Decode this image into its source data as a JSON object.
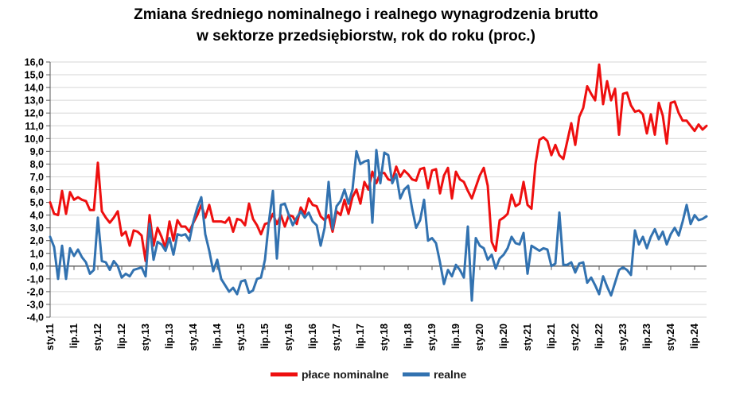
{
  "title": {
    "line1": "Zmiana średniego nominalnego i realnego wynagrodzenia brutto",
    "line2": "w sektorze przedsiębiorstw, rok do roku (proc.)"
  },
  "chart_data": {
    "type": "line",
    "title": "Zmiana średniego nominalnego i realnego wynagrodzenia brutto w sektorze przedsiębiorstw, rok do roku (proc.)",
    "grid": "horizontal",
    "legend_position": "bottom",
    "ylim": [
      -4.0,
      16.0
    ],
    "y_tick_step": 1.0,
    "y_ticks": [
      "16,0",
      "15,0",
      "14,0",
      "13,0",
      "12,0",
      "11,0",
      "10,0",
      "9,0",
      "8,0",
      "7,0",
      "6,0",
      "5,0",
      "4,0",
      "3,0",
      "2,0",
      "1,0",
      "0,0",
      "-1,0",
      "-2,0",
      "-3,0",
      "-4,0"
    ],
    "x_labels": [
      "sty.11",
      "lip.11",
      "sty.12",
      "lip.12",
      "sty.13",
      "lip.13",
      "sty.14",
      "lip.14",
      "sty.15",
      "lip.15",
      "sty.16",
      "lip.16",
      "sty.17",
      "lip.17",
      "sty.18",
      "lip.18",
      "sty.19",
      "lip.19",
      "sty.20",
      "lip.20",
      "sty.21",
      "lip.21",
      "sty.22",
      "lip.22",
      "sty.23",
      "lip.23",
      "sty.24",
      "lip.24"
    ],
    "x_label_every_n_months": 6,
    "colors": {
      "nominal": "#ee0f0f",
      "real": "#3272b0",
      "gridline": "#d6d6d6",
      "axis": "#595959",
      "text": "#000000"
    },
    "series": [
      {
        "name": "płace nominalne",
        "color": "#ee0f0f",
        "values": [
          5.0,
          4.1,
          4.0,
          5.9,
          4.1,
          5.8,
          5.2,
          5.4,
          5.2,
          5.1,
          4.4,
          4.4,
          8.1,
          4.3,
          3.8,
          3.4,
          3.8,
          4.3,
          2.4,
          2.7,
          1.6,
          2.8,
          2.7,
          2.4,
          0.4,
          4.0,
          1.6,
          3.0,
          2.3,
          1.4,
          3.5,
          2.0,
          3.6,
          3.1,
          3.1,
          2.7,
          3.4,
          4.0,
          4.8,
          3.8,
          4.8,
          3.5,
          3.5,
          3.5,
          3.4,
          3.8,
          2.7,
          3.7,
          3.6,
          3.2,
          4.9,
          3.7,
          3.2,
          2.5,
          3.3,
          3.4,
          4.1,
          3.3,
          4.0,
          3.1,
          4.0,
          3.9,
          3.3,
          4.6,
          4.1,
          5.3,
          4.8,
          4.7,
          3.9,
          3.6,
          4.0,
          2.7,
          4.3,
          4.0,
          5.2,
          4.1,
          5.4,
          6.0,
          4.9,
          6.6,
          6.0,
          7.4,
          6.5,
          7.3,
          7.3,
          6.8,
          6.7,
          7.8,
          7.0,
          7.5,
          7.2,
          6.8,
          6.7,
          7.6,
          7.7,
          6.1,
          7.5,
          7.6,
          5.7,
          7.1,
          7.7,
          5.3,
          7.4,
          6.8,
          6.6,
          5.9,
          5.3,
          6.2,
          7.1,
          7.7,
          6.3,
          1.9,
          1.2,
          3.6,
          3.8,
          4.1,
          5.6,
          4.7,
          4.9,
          6.6,
          4.8,
          4.5,
          8.0,
          9.9,
          10.1,
          9.8,
          8.7,
          9.5,
          8.7,
          8.4,
          9.8,
          11.2,
          9.5,
          11.7,
          12.4,
          14.1,
          13.5,
          13.0,
          15.8,
          12.7,
          14.5,
          13.0,
          13.9,
          10.3,
          13.5,
          13.6,
          12.6,
          12.1,
          12.2,
          11.9,
          10.4,
          11.9,
          10.3,
          12.8,
          11.8,
          9.6,
          12.8,
          12.9,
          12.0,
          11.4,
          11.4,
          11.0,
          10.6,
          11.1,
          10.7,
          11.0
        ]
      },
      {
        "name": "realne",
        "color": "#3272b0",
        "values": [
          2.3,
          1.5,
          -1.0,
          1.6,
          -1.0,
          1.4,
          0.8,
          1.3,
          0.7,
          0.3,
          -0.6,
          -0.3,
          3.8,
          0.4,
          0.3,
          -0.3,
          0.4,
          0.0,
          -0.9,
          -0.6,
          -0.8,
          -0.3,
          -0.2,
          -0.1,
          -0.8,
          3.3,
          0.5,
          1.9,
          1.7,
          1.2,
          2.2,
          0.9,
          2.5,
          2.4,
          2.5,
          2.0,
          3.5,
          4.6,
          5.4,
          2.5,
          1.2,
          -0.4,
          0.5,
          -1.0,
          -1.5,
          -2.0,
          -1.7,
          -2.2,
          -1.2,
          -1.1,
          -2.1,
          -1.9,
          -1.0,
          -0.9,
          0.5,
          3.5,
          5.9,
          0.6,
          4.8,
          4.9,
          4.0,
          3.2,
          3.8,
          4.3,
          3.8,
          4.2,
          3.5,
          3.2,
          1.6,
          3.0,
          6.6,
          2.9,
          4.7,
          5.1,
          6.0,
          4.9,
          6.0,
          9.0,
          8.0,
          8.2,
          8.3,
          3.4,
          9.1,
          6.5,
          8.9,
          8.7,
          6.5,
          7.2,
          5.3,
          6.0,
          6.3,
          4.5,
          3.0,
          3.6,
          5.2,
          2.0,
          2.2,
          1.8,
          0.3,
          -1.4,
          -0.3,
          -0.8,
          0.1,
          -0.3,
          -0.9,
          3.1,
          -2.7,
          2.2,
          1.6,
          1.4,
          0.5,
          0.9,
          -0.2,
          0.6,
          0.9,
          1.4,
          2.3,
          1.8,
          1.7,
          2.6,
          -0.6,
          1.6,
          1.4,
          1.2,
          1.4,
          1.3,
          0.0,
          0.2,
          4.2,
          0.1,
          0.1,
          0.3,
          -0.5,
          0.2,
          0.3,
          -1.3,
          -0.9,
          -1.5,
          -2.2,
          -0.8,
          -1.6,
          -2.3,
          -1.3,
          -0.3,
          -0.1,
          -0.3,
          -0.7,
          2.8,
          1.7,
          2.3,
          1.4,
          2.3,
          2.9,
          2.1,
          2.7,
          1.7,
          2.5,
          3.0,
          2.4,
          3.5,
          4.8,
          3.3,
          4.0,
          3.6,
          3.7,
          3.9
        ]
      }
    ]
  },
  "legend": {
    "nominal_label": "płace nominalne",
    "real_label": "realne"
  }
}
